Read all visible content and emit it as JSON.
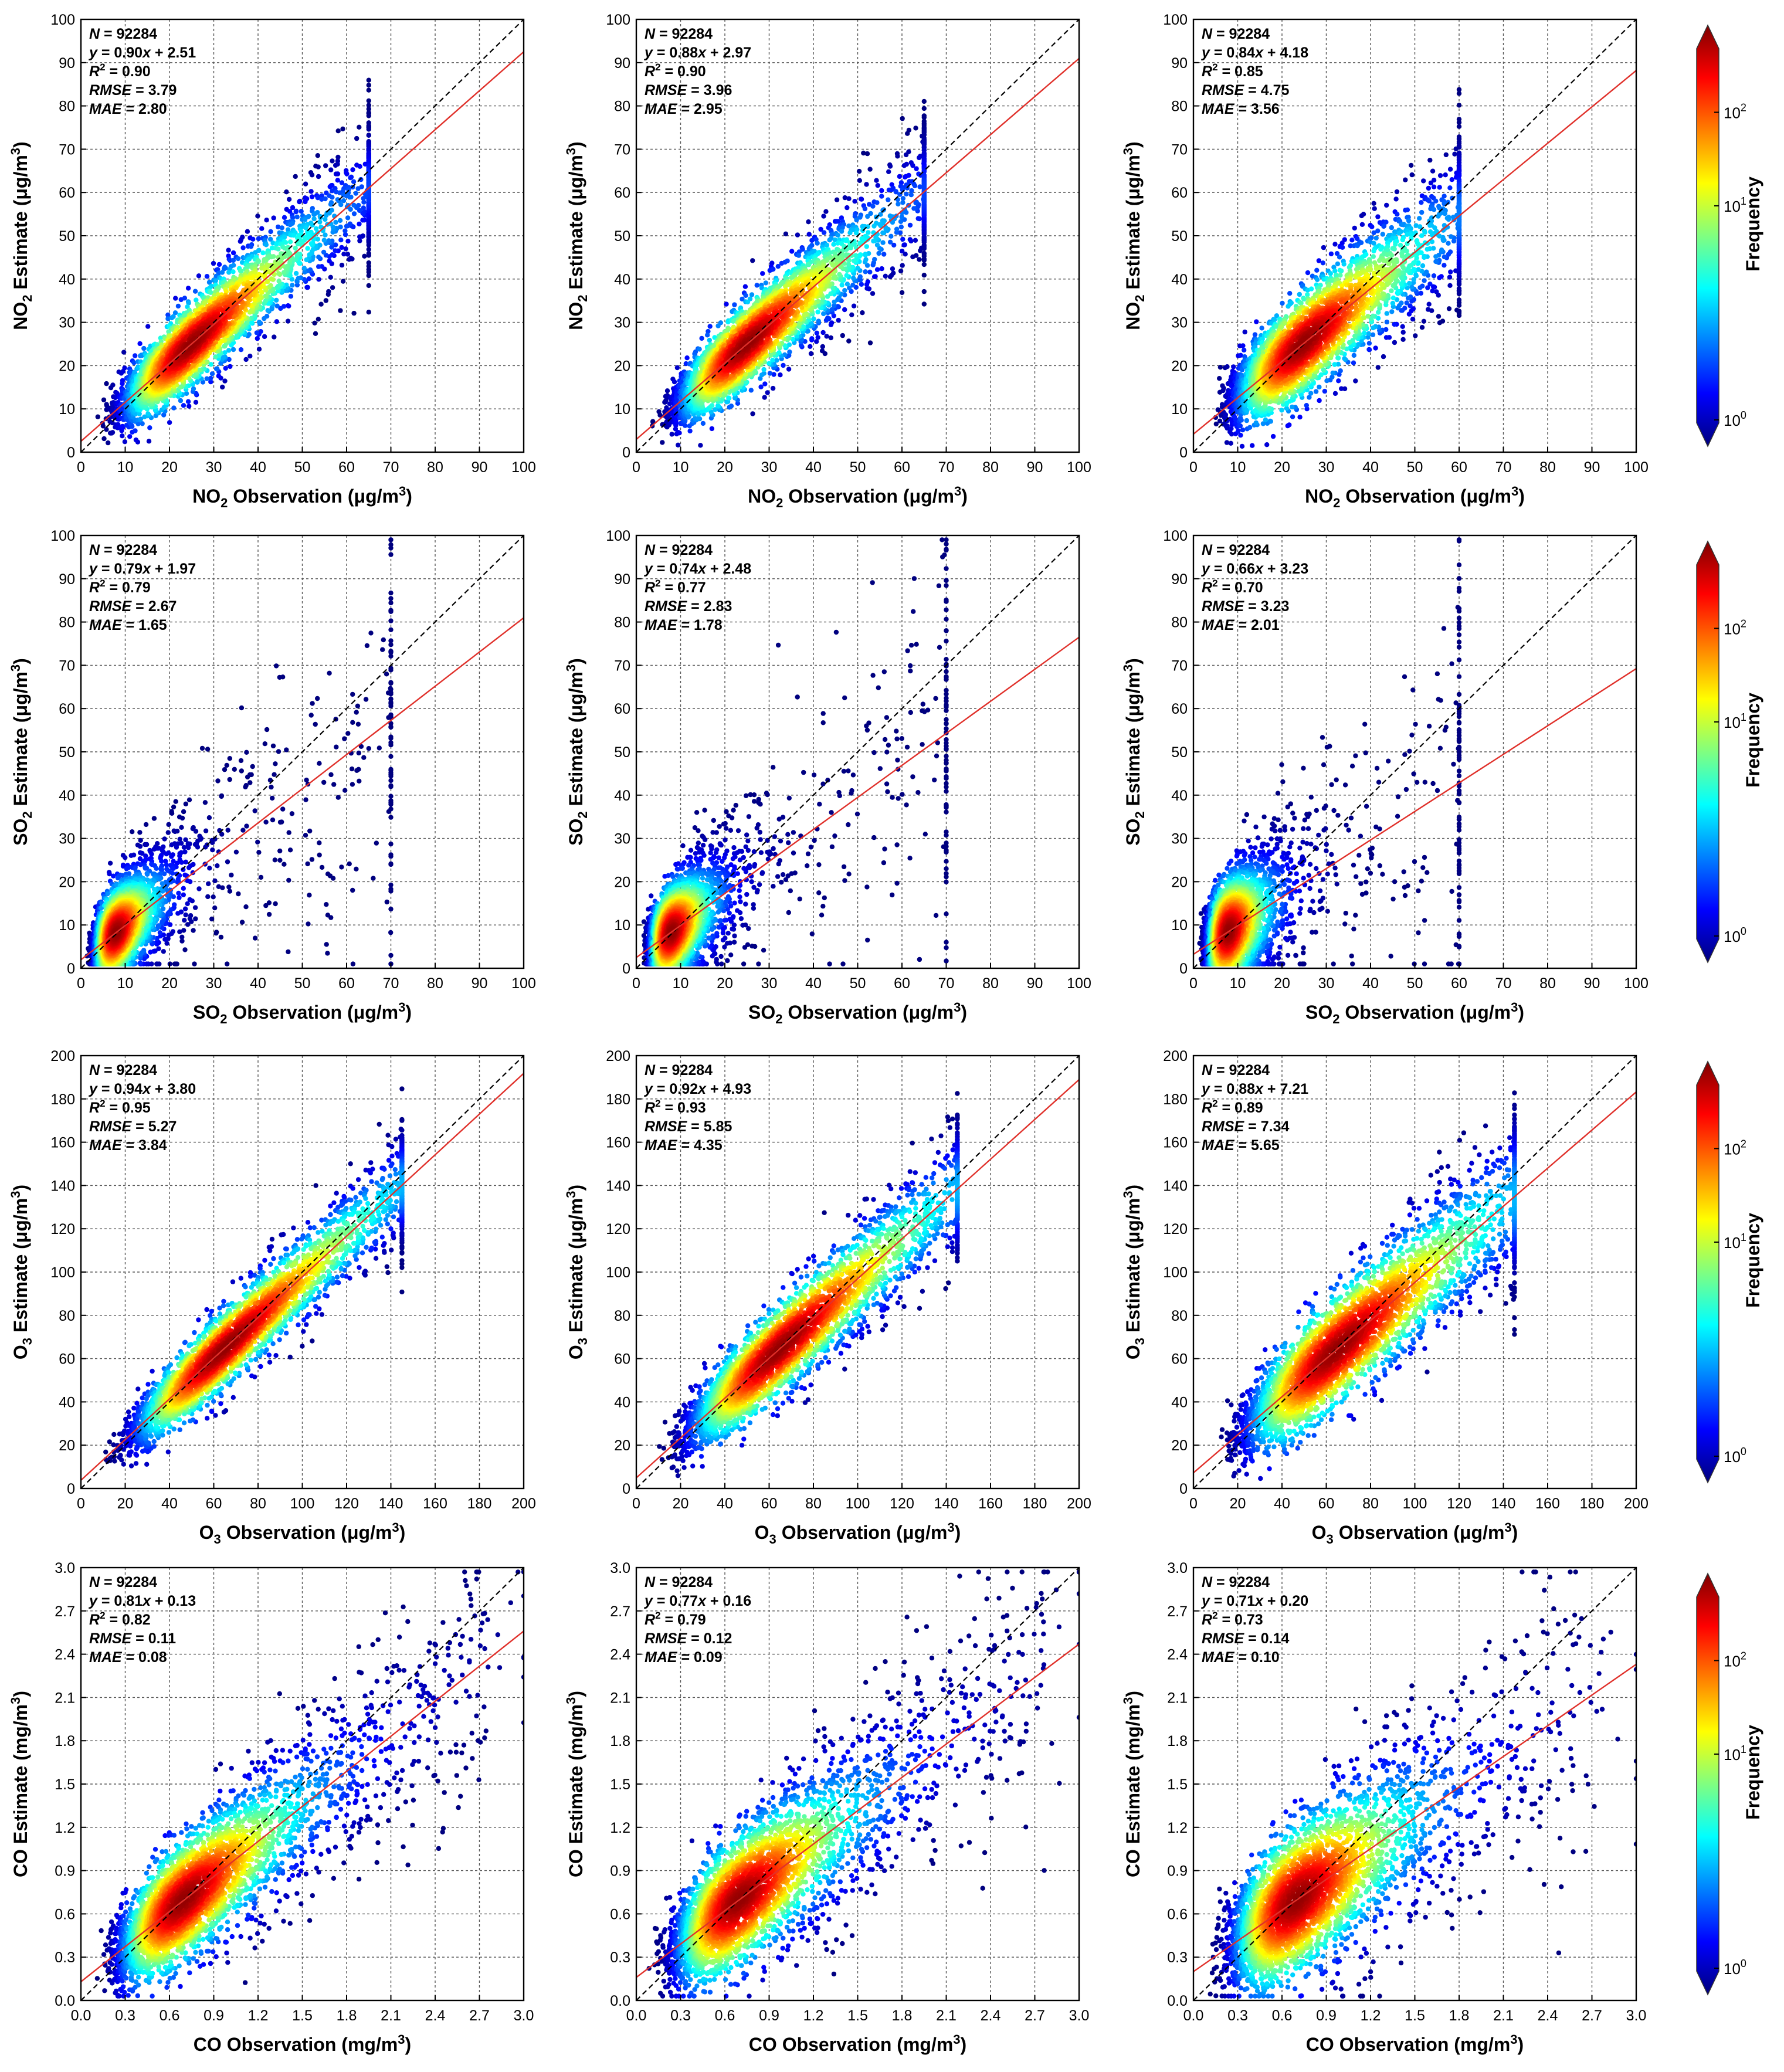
{
  "figure": {
    "colorbar_label": "Frequency",
    "colorbar_ticks": [
      {
        "base": "10",
        "exp": "0"
      },
      {
        "base": "10",
        "exp": "1"
      },
      {
        "base": "10",
        "exp": "2"
      }
    ],
    "colormap": [
      "#00007f",
      "#0000ff",
      "#0080ff",
      "#00ffff",
      "#80ff80",
      "#ffff00",
      "#ff8000",
      "#ff0000",
      "#7f0000"
    ],
    "fit_line_color": "#e0302a",
    "one_to_one_line_color": "#000000",
    "grid_color": "#555555"
  },
  "chart_data": [
    {
      "type": "scatter",
      "pollutant": "NO2",
      "sub": "2",
      "unit": "μg/m",
      "unit_exp": "3",
      "xlabel": "NO2 Observation (μg/m3)",
      "ylabel": "NO2 Estimate (μg/m3)",
      "xlim": [
        0,
        100
      ],
      "ylim": [
        0,
        100
      ],
      "ticks": [
        "0",
        "10",
        "20",
        "30",
        "40",
        "50",
        "60",
        "70",
        "80",
        "90",
        "100"
      ],
      "stats": {
        "n": "92284",
        "eq_slope": "0.90",
        "eq_intercept": "+ 2.51",
        "r2": "0.90",
        "rmse": "3.79",
        "mae": "2.80"
      },
      "slope": 0.9,
      "intercept": 2.51,
      "r2": 0.9,
      "cloud": {
        "center": 25,
        "spread": 11,
        "max": 65
      }
    },
    {
      "type": "scatter",
      "pollutant": "NO2",
      "sub": "2",
      "unit": "μg/m",
      "unit_exp": "3",
      "xlabel": "NO2 Observation (μg/m3)",
      "ylabel": "NO2 Estimate (μg/m3)",
      "xlim": [
        0,
        100
      ],
      "ylim": [
        0,
        100
      ],
      "ticks": [
        "0",
        "10",
        "20",
        "30",
        "40",
        "50",
        "60",
        "70",
        "80",
        "90",
        "100"
      ],
      "stats": {
        "n": "92284",
        "eq_slope": "0.88",
        "eq_intercept": "+ 2.97",
        "r2": "0.90",
        "rmse": "3.96",
        "mae": "2.95"
      },
      "slope": 0.88,
      "intercept": 2.97,
      "r2": 0.9,
      "cloud": {
        "center": 25,
        "spread": 11,
        "max": 65
      }
    },
    {
      "type": "scatter",
      "pollutant": "NO2",
      "sub": "2",
      "unit": "μg/m",
      "unit_exp": "3",
      "xlabel": "NO2 Observation (μg/m3)",
      "ylabel": "NO2 Estimate (μg/m3)",
      "xlim": [
        0,
        100
      ],
      "ylim": [
        0,
        100
      ],
      "ticks": [
        "0",
        "10",
        "20",
        "30",
        "40",
        "50",
        "60",
        "70",
        "80",
        "90",
        "100"
      ],
      "stats": {
        "n": "92284",
        "eq_slope": "0.84",
        "eq_intercept": "+ 4.18",
        "r2": "0.85",
        "rmse": "4.75",
        "mae": "3.56"
      },
      "slope": 0.84,
      "intercept": 4.18,
      "r2": 0.85,
      "cloud": {
        "center": 25,
        "spread": 11,
        "max": 60
      }
    },
    {
      "type": "scatter",
      "pollutant": "SO2",
      "sub": "2",
      "unit": "μg/m",
      "unit_exp": "3",
      "xlabel": "SO2 Observation (μg/m3)",
      "ylabel": "SO2 Estimate (μg/m3)",
      "xlim": [
        0,
        100
      ],
      "ylim": [
        0,
        100
      ],
      "ticks": [
        "0",
        "10",
        "20",
        "30",
        "40",
        "50",
        "60",
        "70",
        "80",
        "90",
        "100"
      ],
      "stats": {
        "n": "92284",
        "eq_slope": "0.79",
        "eq_intercept": "+ 1.97",
        "r2": "0.79",
        "rmse": "2.67",
        "mae": "1.65"
      },
      "slope": 0.79,
      "intercept": 1.97,
      "r2": 0.79,
      "cloud": {
        "center": 8,
        "spread": 8,
        "max": 70
      }
    },
    {
      "type": "scatter",
      "pollutant": "SO2",
      "sub": "2",
      "unit": "μg/m",
      "unit_exp": "3",
      "xlabel": "SO2 Observation (μg/m3)",
      "ylabel": "SO2 Estimate (μg/m3)",
      "xlim": [
        0,
        100
      ],
      "ylim": [
        0,
        100
      ],
      "ticks": [
        "0",
        "10",
        "20",
        "30",
        "40",
        "50",
        "60",
        "70",
        "80",
        "90",
        "100"
      ],
      "stats": {
        "n": "92284",
        "eq_slope": "0.74",
        "eq_intercept": "+ 2.48",
        "r2": "0.77",
        "rmse": "2.83",
        "mae": "1.78"
      },
      "slope": 0.74,
      "intercept": 2.48,
      "r2": 0.77,
      "cloud": {
        "center": 8,
        "spread": 8,
        "max": 70
      }
    },
    {
      "type": "scatter",
      "pollutant": "SO2",
      "sub": "2",
      "unit": "μg/m",
      "unit_exp": "3",
      "xlabel": "SO2 Observation (μg/m3)",
      "ylabel": "SO2 Estimate (μg/m3)",
      "xlim": [
        0,
        100
      ],
      "ylim": [
        0,
        100
      ],
      "ticks": [
        "0",
        "10",
        "20",
        "30",
        "40",
        "50",
        "60",
        "70",
        "80",
        "90",
        "100"
      ],
      "stats": {
        "n": "92284",
        "eq_slope": "0.66",
        "eq_intercept": "+ 3.23",
        "r2": "0.70",
        "rmse": "3.23",
        "mae": "2.01"
      },
      "slope": 0.66,
      "intercept": 3.23,
      "r2": 0.7,
      "cloud": {
        "center": 8,
        "spread": 8,
        "max": 60
      }
    },
    {
      "type": "scatter",
      "pollutant": "O3",
      "sub": "3",
      "unit": "μg/m",
      "unit_exp": "3",
      "xlabel": "O3 Observation (μg/m3)",
      "ylabel": "O3 Estimate (μg/m3)",
      "xlim": [
        0,
        200
      ],
      "ylim": [
        0,
        200
      ],
      "ticks": [
        "0",
        "20",
        "40",
        "60",
        "80",
        "100",
        "120",
        "140",
        "160",
        "180",
        "200"
      ],
      "stats": {
        "n": "92284",
        "eq_slope": "0.94",
        "eq_intercept": "+ 3.80",
        "r2": "0.95",
        "rmse": "5.27",
        "mae": "3.84"
      },
      "slope": 0.94,
      "intercept": 3.8,
      "r2": 0.95,
      "cloud": {
        "center": 65,
        "spread": 28,
        "max": 145
      }
    },
    {
      "type": "scatter",
      "pollutant": "O3",
      "sub": "3",
      "unit": "μg/m",
      "unit_exp": "3",
      "xlabel": "O3 Observation (μg/m3)",
      "ylabel": "O3 Estimate (μg/m3)",
      "xlim": [
        0,
        200
      ],
      "ylim": [
        0,
        200
      ],
      "ticks": [
        "0",
        "20",
        "40",
        "60",
        "80",
        "100",
        "120",
        "140",
        "160",
        "180",
        "200"
      ],
      "stats": {
        "n": "92284",
        "eq_slope": "0.92",
        "eq_intercept": "+ 4.93",
        "r2": "0.93",
        "rmse": "5.85",
        "mae": "4.35"
      },
      "slope": 0.92,
      "intercept": 4.93,
      "r2": 0.93,
      "cloud": {
        "center": 65,
        "spread": 28,
        "max": 145
      }
    },
    {
      "type": "scatter",
      "pollutant": "O3",
      "sub": "3",
      "unit": "μg/m",
      "unit_exp": "3",
      "xlabel": "O3 Observation (μg/m3)",
      "ylabel": "O3 Estimate (μg/m3)",
      "xlim": [
        0,
        200
      ],
      "ylim": [
        0,
        200
      ],
      "ticks": [
        "0",
        "20",
        "40",
        "60",
        "80",
        "100",
        "120",
        "140",
        "160",
        "180",
        "200"
      ],
      "stats": {
        "n": "92284",
        "eq_slope": "0.88",
        "eq_intercept": "+ 7.21",
        "r2": "0.89",
        "rmse": "7.34",
        "mae": "5.65"
      },
      "slope": 0.88,
      "intercept": 7.21,
      "r2": 0.89,
      "cloud": {
        "center": 65,
        "spread": 28,
        "max": 145
      }
    },
    {
      "type": "scatter",
      "pollutant": "CO",
      "sub": "",
      "unit": "mg/m",
      "unit_exp": "3",
      "xlabel": "CO Observation (mg/m3)",
      "ylabel": "CO Estimate (mg/m3)",
      "xlim": [
        0,
        3.0
      ],
      "ylim": [
        0,
        3.0
      ],
      "ticks": [
        "0.0",
        "0.3",
        "0.6",
        "0.9",
        "1.2",
        "1.5",
        "1.8",
        "2.1",
        "2.4",
        "2.7",
        "3.0"
      ],
      "stats": {
        "n": "92284",
        "eq_slope": "0.81",
        "eq_intercept": "+ 0.13",
        "r2": "0.82",
        "rmse": "0.11",
        "mae": "0.08"
      },
      "slope": 0.81,
      "intercept": 0.13,
      "r2": 0.82,
      "cloud": {
        "center": 0.7,
        "spread": 0.35,
        "max": 3.0
      }
    },
    {
      "type": "scatter",
      "pollutant": "CO",
      "sub": "",
      "unit": "mg/m",
      "unit_exp": "3",
      "xlabel": "CO Observation (mg/m3)",
      "ylabel": "CO Estimate (mg/m3)",
      "xlim": [
        0,
        3.0
      ],
      "ylim": [
        0,
        3.0
      ],
      "ticks": [
        "0.0",
        "0.3",
        "0.6",
        "0.9",
        "1.2",
        "1.5",
        "1.8",
        "2.1",
        "2.4",
        "2.7",
        "3.0"
      ],
      "stats": {
        "n": "92284",
        "eq_slope": "0.77",
        "eq_intercept": "+ 0.16",
        "r2": "0.79",
        "rmse": "0.12",
        "mae": "0.09"
      },
      "slope": 0.77,
      "intercept": 0.16,
      "r2": 0.79,
      "cloud": {
        "center": 0.7,
        "spread": 0.35,
        "max": 3.0
      }
    },
    {
      "type": "scatter",
      "pollutant": "CO",
      "sub": "",
      "unit": "mg/m",
      "unit_exp": "3",
      "xlabel": "CO Observation (mg/m3)",
      "ylabel": "CO Estimate (mg/m3)",
      "xlim": [
        0,
        3.0
      ],
      "ylim": [
        0,
        3.0
      ],
      "ticks": [
        "0.0",
        "0.3",
        "0.6",
        "0.9",
        "1.2",
        "1.5",
        "1.8",
        "2.1",
        "2.4",
        "2.7",
        "3.0"
      ],
      "stats": {
        "n": "92284",
        "eq_slope": "0.71",
        "eq_intercept": "+ 0.20",
        "r2": "0.73",
        "rmse": "0.14",
        "mae": "0.10"
      },
      "slope": 0.71,
      "intercept": 0.2,
      "r2": 0.73,
      "cloud": {
        "center": 0.7,
        "spread": 0.35,
        "max": 3.0
      }
    }
  ]
}
